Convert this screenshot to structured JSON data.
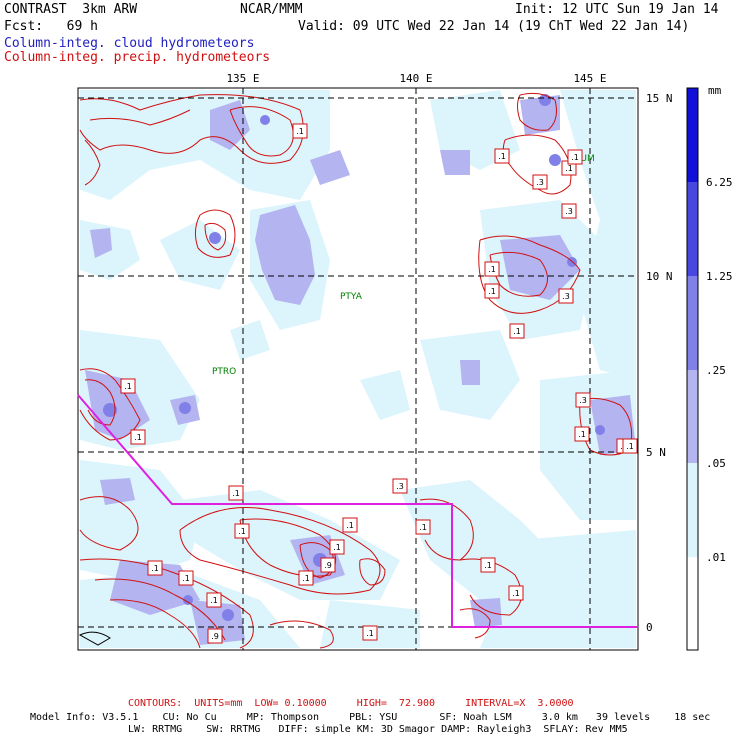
{
  "header": {
    "model": "CONTRAST  3km ARW",
    "center": "NCAR/MMM",
    "init": "Init: 12 UTC Sun 19 Jan 14",
    "fcst": "Fcst:   69 h",
    "valid": "Valid: 09 UTC Wed 22 Jan 14 (19 ChT Wed 22 Jan 14)",
    "field_cloud": "Column-integ. cloud hydrometeors",
    "field_precip": "Column-integ. precip. hydrometeors"
  },
  "axes": {
    "lon_labels": [
      "135 E",
      "140 E",
      "145 E"
    ],
    "lat_labels": [
      "15 N",
      "10 N",
      "5 N",
      "0"
    ]
  },
  "stations": [
    "PGUM",
    "PTYA",
    "PTRO"
  ],
  "contour_labels": [
    ".1",
    ".1",
    ".1",
    ".1",
    ".3",
    ".3",
    ".1",
    ".1",
    ".3",
    ".1",
    ".1",
    ".3",
    ".1",
    ".1",
    ".1",
    ".3",
    ".1",
    ".1",
    ".1",
    ".1",
    ".1",
    ".1",
    ".1",
    ".1",
    ".1",
    ".3",
    ".1",
    ".9",
    ".1",
    ".1",
    ".9",
    ".1"
  ],
  "colorbar": {
    "unit": "mm",
    "levels": [
      "6.25",
      "1.25",
      ".25",
      ".05",
      ".01"
    ],
    "colors": [
      "#1010d8",
      "#4848e0",
      "#8080e8",
      "#b4b4f0",
      "#dcf4fc",
      "#ffffff"
    ]
  },
  "colors": {
    "cloud_light": "#dcf4fc",
    "cloud_mid": "#b4b4f0",
    "cloud_dark": "#8080e8",
    "precip_contour": "#d01010",
    "boundary_line": "#e020e0"
  },
  "footer": {
    "contours": "CONTOURS:  UNITS=mm  LOW= 0.10000     HIGH=  72.900     INTERVAL=X  3.0000",
    "model_info_1": "Model Info: V3.5.1    CU: No Cu     MP: Thompson     PBL: YSU       SF: Noah LSM     3.0 km   39 levels    18 sec",
    "model_info_2": "LW: RRTMG    SW: RRTMG   DIFF: simple KM: 3D Smagor DAMP: Rayleigh3  SFLAY: Rev MM5"
  }
}
